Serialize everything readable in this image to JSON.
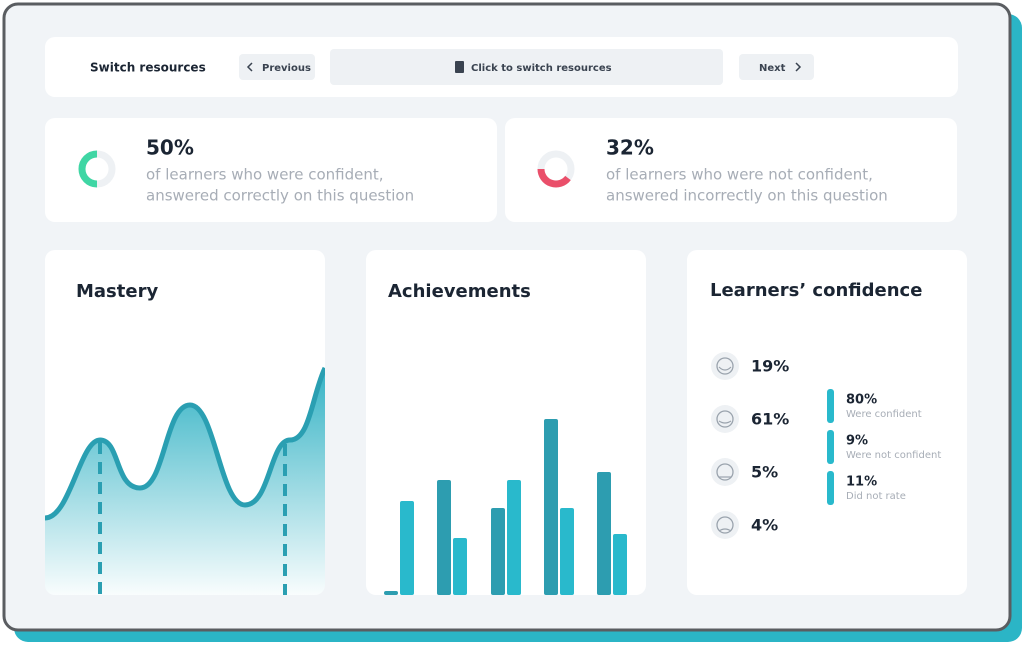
{
  "header": {
    "label": "Switch resources",
    "previous": "Previous",
    "switch": "Click to switch resources",
    "next": "Next"
  },
  "stats": [
    {
      "value": "50%",
      "line1": "of learners who were confident,",
      "line2": "answered correctly on this question"
    },
    {
      "value": "32%",
      "line1": "of learners who were not confident,",
      "line2": "answered incorrectly on this question"
    }
  ],
  "mastery": {
    "title": "Mastery"
  },
  "achievements": {
    "title": "Achievements",
    "series": [
      {
        "color": "#2d9db0",
        "values": [
          4,
          115,
          87,
          176,
          123
        ]
      },
      {
        "color": "#29b9cc",
        "values": [
          94,
          57,
          115,
          87,
          61
        ]
      }
    ]
  },
  "confidence": {
    "title": "Learners’ confidence",
    "ratings": [
      "19%",
      "61%",
      "5%",
      "4%"
    ],
    "legend": [
      {
        "value": "80%",
        "label": "Were confident"
      },
      {
        "value": "9%",
        "label": "Were not confident"
      },
      {
        "value": "11%",
        "label": "Did not rate"
      }
    ]
  }
}
